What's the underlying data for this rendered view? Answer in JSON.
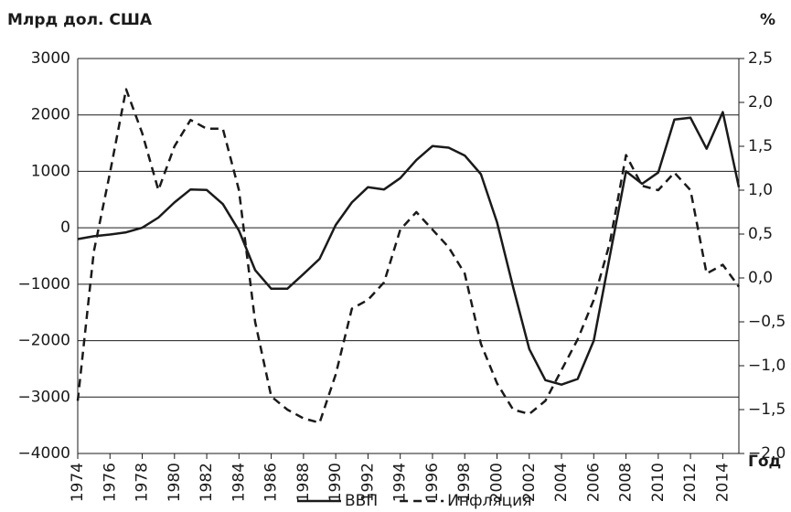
{
  "chart_data": {
    "type": "line",
    "y_label": "Млрд дол. США",
    "y2_label": "%",
    "x_label": "Год",
    "x": [
      1974,
      1975,
      1976,
      1977,
      1978,
      1979,
      1980,
      1981,
      1982,
      1983,
      1984,
      1985,
      1986,
      1987,
      1988,
      1989,
      1990,
      1991,
      1992,
      1993,
      1994,
      1995,
      1996,
      1997,
      1998,
      1999,
      2000,
      2001,
      2002,
      2003,
      2004,
      2005,
      2006,
      2007,
      2008,
      2009,
      2010,
      2011,
      2012,
      2013,
      2014,
      2015
    ],
    "xlim": [
      1974,
      2015
    ],
    "xticks": [
      1974,
      1976,
      1978,
      1980,
      1982,
      1984,
      1986,
      1988,
      1990,
      1992,
      1994,
      1996,
      1998,
      2000,
      2002,
      2004,
      2006,
      2008,
      2010,
      2012,
      2014
    ],
    "ylim": [
      -4000,
      3000
    ],
    "yticks": [
      {
        "value": -4000,
        "label": "−4000"
      },
      {
        "value": -3000,
        "label": "−3000"
      },
      {
        "value": -2000,
        "label": "−2000"
      },
      {
        "value": -1000,
        "label": "−1000"
      },
      0,
      1000,
      2000,
      3000
    ],
    "y2lim": [
      -2,
      2.5
    ],
    "y2ticks": [
      {
        "value": -2,
        "label": "−2,0"
      },
      {
        "value": -1.5,
        "label": "−1,5"
      },
      {
        "value": -1,
        "label": "−1,0"
      },
      {
        "value": -0.5,
        "label": "−0,5"
      },
      {
        "value": 0,
        "label": "0,0"
      },
      {
        "value": 0.5,
        "label": "0,5"
      },
      {
        "value": 1,
        "label": "1,0"
      },
      {
        "value": 1.5,
        "label": "1,5"
      },
      {
        "value": 2,
        "label": "2,0"
      },
      {
        "value": 2.5,
        "label": "2,5"
      }
    ],
    "grid": true,
    "legend": "bottom",
    "series": [
      {
        "name": "ВВП",
        "color": "#1a1a1a",
        "line_style": "solid",
        "values": [
          -200,
          -150,
          -120,
          -80,
          0,
          180,
          450,
          680,
          670,
          420,
          -50,
          -750,
          -1080,
          -1080,
          -820,
          -550,
          50,
          450,
          720,
          680,
          880,
          1200,
          1450,
          1420,
          1280,
          950,
          100,
          -1050,
          -2150,
          -2700,
          -2780,
          -2680,
          -2000,
          -500,
          1000,
          780,
          980,
          1920,
          1950,
          1400,
          2050,
          720
        ]
      },
      {
        "name": "Инфляция",
        "color": "#1a1a1a",
        "line_style": "dashed",
        "axis": "y2",
        "values": [
          -1.4,
          0.3,
          1.2,
          2.15,
          1.65,
          1.0,
          1.5,
          1.8,
          1.7,
          1.7,
          1.0,
          -0.5,
          -1.35,
          -1.5,
          -1.6,
          -1.65,
          -1.1,
          -0.35,
          -0.25,
          -0.05,
          0.55,
          0.75,
          0.55,
          0.35,
          0.05,
          -0.75,
          -1.2,
          -1.5,
          -1.55,
          -1.4,
          -1.05,
          -0.7,
          -0.25,
          0.4,
          1.4,
          1.05,
          1.0,
          1.2,
          1.0,
          0.05,
          0.15,
          -0.1
        ]
      }
    ]
  }
}
